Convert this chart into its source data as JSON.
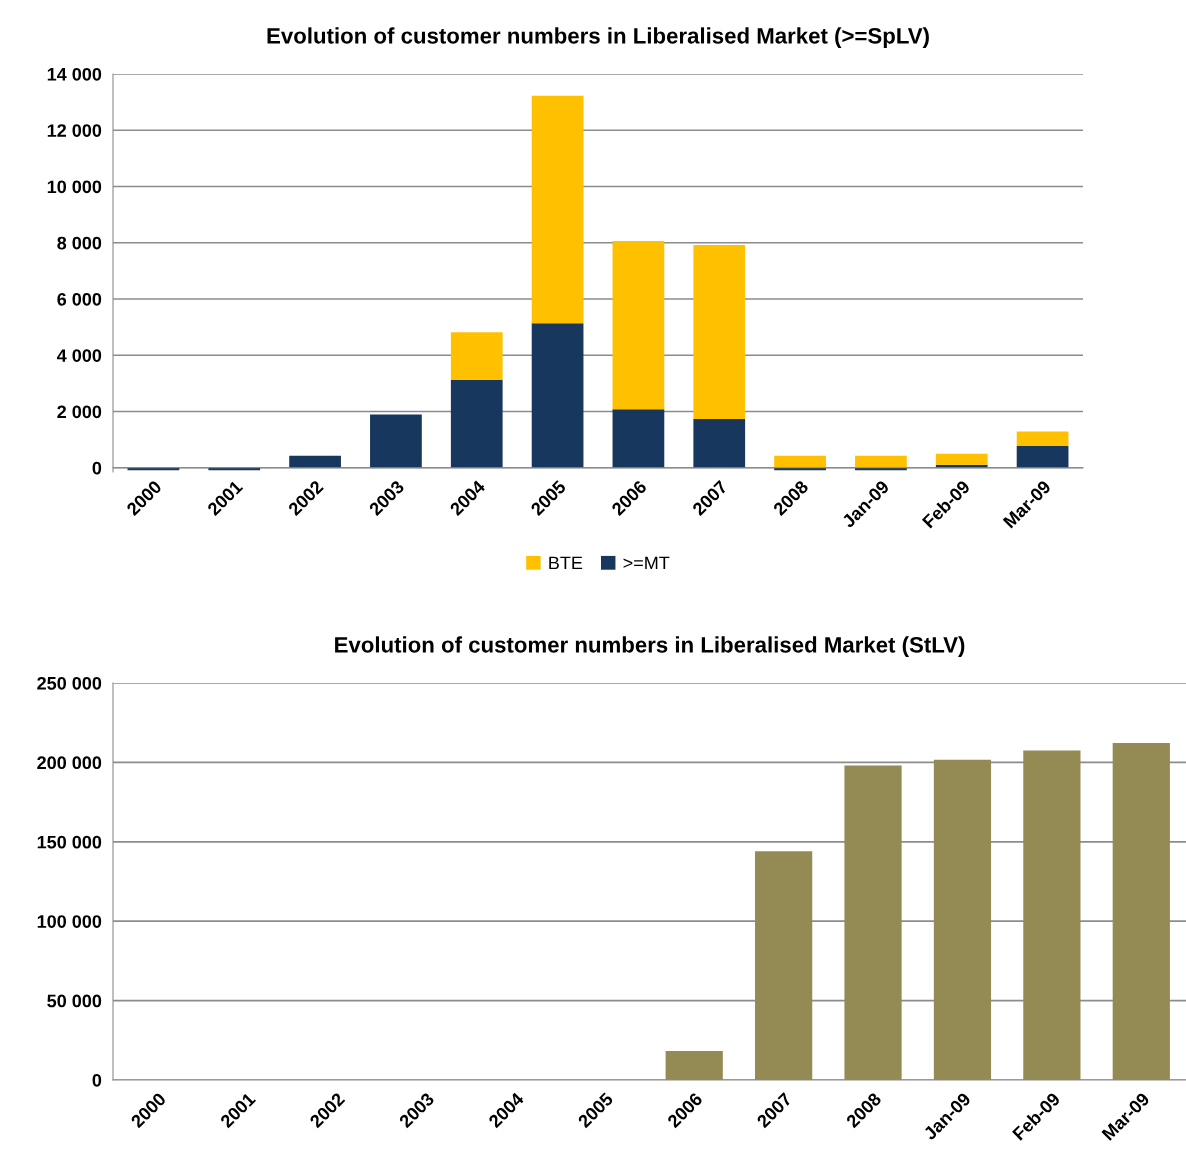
{
  "chart_data": [
    {
      "type": "bar",
      "title": "Evolution of customer numbers in Liberalised Market (>=SpLV)",
      "stacked": true,
      "legend": "bottom",
      "grid": "y",
      "categories": [
        "2000",
        "2001",
        "2002",
        "2003",
        "2004",
        "2005",
        "2006",
        "2007",
        "2008",
        "Jan-09",
        "Feb-09",
        "Mar-09"
      ],
      "series": [
        {
          "name": ">=MT",
          "color": "#17375e",
          "values": [
            -90,
            -90,
            430,
            1890,
            3130,
            5140,
            2080,
            1730,
            -90,
            -90,
            110,
            770
          ]
        },
        {
          "name": "BTE",
          "color": "#ffc000",
          "values": [
            0,
            0,
            0,
            0,
            1690,
            8090,
            5980,
            6190,
            430,
            430,
            390,
            520
          ]
        }
      ],
      "ylim": [
        -150,
        14000
      ],
      "yticks": [
        {
          "value": 0,
          "label": "0"
        },
        {
          "value": 2000,
          "label": "2 000"
        },
        {
          "value": 4000,
          "label": "4 000"
        },
        {
          "value": 6000,
          "label": "6 000"
        },
        {
          "value": 8000,
          "label": "8 000"
        },
        {
          "value": 10000,
          "label": "10 000"
        },
        {
          "value": 12000,
          "label": "12 000"
        },
        {
          "value": 14000,
          "label": "14 000"
        }
      ]
    },
    {
      "type": "bar",
      "title": "Evolution of customer numbers in Liberalised Market (StLV)",
      "grid": "y",
      "categories": [
        "2000",
        "2001",
        "2002",
        "2003",
        "2004",
        "2005",
        "2006",
        "2007",
        "2008",
        "Jan-09",
        "Feb-09",
        "Mar-09"
      ],
      "series": [
        {
          "color": "#948a54",
          "values": [
            0,
            0,
            0,
            0,
            0,
            0,
            18200,
            144000,
            198000,
            201600,
            207500,
            212200
          ]
        }
      ],
      "ylim": [
        0,
        250000
      ],
      "yticks": [
        {
          "value": 0,
          "label": "0"
        },
        {
          "value": 50000,
          "label": "50 000"
        },
        {
          "value": 100000,
          "label": "100 000"
        },
        {
          "value": 150000,
          "label": "150 000"
        },
        {
          "value": 200000,
          "label": "200 000"
        },
        {
          "value": 250000,
          "label": "250 000"
        }
      ]
    }
  ]
}
